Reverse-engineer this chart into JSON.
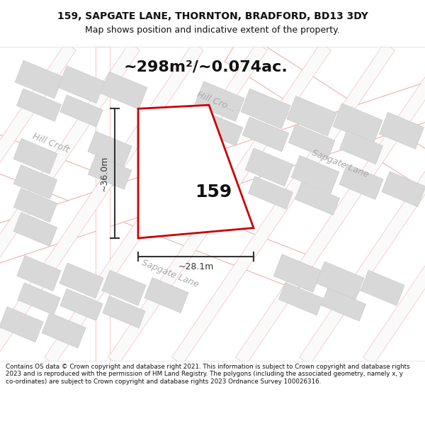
{
  "title_line1": "159, SAPGATE LANE, THORNTON, BRADFORD, BD13 3DY",
  "title_line2": "Map shows position and indicative extent of the property.",
  "area_text": "~298m²/~0.074ac.",
  "label_159": "159",
  "dim_width": "~28.1m",
  "dim_height": "~36.0m",
  "road_label_hill_croft": "Hill Croft",
  "road_label_hill_cro": "Hill Cro...",
  "road_label_sapgate_upper": "Sapgate Lane",
  "road_label_sapgate_lower": "Sapgate Lane",
  "footer_text": "Contains OS data © Crown copyright and database right 2021. This information is subject to Crown copyright and database rights 2023 and is reproduced with the permission of HM Land Registry. The polygons (including the associated geometry, namely x, y co-ordinates) are subject to Crown copyright and database rights 2023 Ordnance Survey 100026316.",
  "bg_color": "#ffffff",
  "map_bg": "#f7f7f7",
  "plot_fill": "#ffffff",
  "plot_stroke": "#cc0000",
  "road_fill": "#ffffff",
  "road_stroke_light": "#f0b0b0",
  "building_fill": "#d8d8d8",
  "building_stroke": "#cccccc",
  "dim_color": "#333333",
  "road_label_color": "#aaaaaa",
  "title_color": "#111111",
  "footer_color": "#111111",
  "map_border": "#cccccc",
  "title_fontsize": 10,
  "subtitle_fontsize": 9,
  "area_fontsize": 16,
  "label_fontsize": 18,
  "dim_fontsize": 9,
  "road_fontsize": 9,
  "footer_fontsize": 6.3
}
